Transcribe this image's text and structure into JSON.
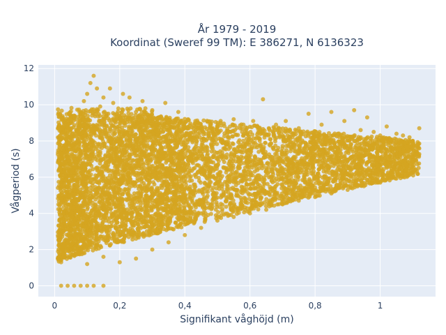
{
  "chart_data": {
    "type": "scatter",
    "title_line1": "År 1979 - 2019",
    "title_line2": "Koordinat (Sweref 99 TM): E 386271, N 6136323",
    "xlabel": "Signifikant våghöjd (m)",
    "ylabel": "Vågperiod (s)",
    "xlim": [
      -0.05,
      1.17
    ],
    "ylim": [
      -0.6,
      12.2
    ],
    "x_ticks": [
      0,
      0.2,
      0.4,
      0.6,
      0.8,
      1
    ],
    "x_tick_labels": [
      "0",
      "0,2",
      "0,4",
      "0,6",
      "0,8",
      "1"
    ],
    "y_ticks": [
      0,
      2,
      4,
      6,
      8,
      10,
      12
    ],
    "y_tick_labels": [
      "0",
      "2",
      "4",
      "6",
      "8",
      "10",
      "12"
    ],
    "grid": true,
    "marker_color": "#D4A520",
    "plot_bg_color": "#E5ECF6",
    "points": [
      [
        0.02,
        0
      ],
      [
        0.04,
        0
      ],
      [
        0.06,
        0
      ],
      [
        0.08,
        0
      ],
      [
        0.1,
        0
      ],
      [
        0.12,
        0
      ],
      [
        0.15,
        0
      ],
      [
        0.01,
        1.5
      ],
      [
        0.02,
        1.3
      ],
      [
        0.03,
        2.2
      ],
      [
        0.03,
        6.4
      ],
      [
        0.04,
        8.8
      ],
      [
        0.04,
        4.5
      ],
      [
        0.05,
        3.1
      ],
      [
        0.06,
        9.4
      ],
      [
        0.06,
        7.0
      ],
      [
        0.07,
        5.5
      ],
      [
        0.07,
        1.9
      ],
      [
        0.08,
        9.6
      ],
      [
        0.08,
        2.6
      ],
      [
        0.09,
        10.2
      ],
      [
        0.09,
        6.8
      ],
      [
        0.1,
        10.6
      ],
      [
        0.1,
        3.7
      ],
      [
        0.1,
        1.2
      ],
      [
        0.11,
        11.2
      ],
      [
        0.11,
        8.1
      ],
      [
        0.12,
        11.6
      ],
      [
        0.12,
        5.0
      ],
      [
        0.13,
        10.9
      ],
      [
        0.13,
        2.3
      ],
      [
        0.14,
        9.9
      ],
      [
        0.14,
        7.3
      ],
      [
        0.15,
        10.4
      ],
      [
        0.15,
        1.6
      ],
      [
        0.16,
        9.5
      ],
      [
        0.16,
        4.2
      ],
      [
        0.17,
        10.9
      ],
      [
        0.17,
        6.1
      ],
      [
        0.18,
        10.1
      ],
      [
        0.19,
        2.6
      ],
      [
        0.2,
        9.0
      ],
      [
        0.2,
        5.6
      ],
      [
        0.21,
        10.6
      ],
      [
        0.22,
        3.1
      ],
      [
        0.22,
        7.8
      ],
      [
        0.23,
        10.4
      ],
      [
        0.24,
        4.8
      ],
      [
        0.25,
        9.6
      ],
      [
        0.25,
        2.6
      ],
      [
        0.26,
        6.9
      ],
      [
        0.27,
        10.2
      ],
      [
        0.28,
        3.3
      ],
      [
        0.29,
        8.5
      ],
      [
        0.3,
        9.7
      ],
      [
        0.3,
        5.3
      ],
      [
        0.31,
        3.4
      ],
      [
        0.32,
        9.3
      ],
      [
        0.33,
        6.6
      ],
      [
        0.34,
        10.1
      ],
      [
        0.35,
        3.7
      ],
      [
        0.36,
        8.9
      ],
      [
        0.37,
        5.1
      ],
      [
        0.38,
        9.6
      ],
      [
        0.39,
        4.1
      ],
      [
        0.4,
        7.6
      ],
      [
        0.41,
        9.2
      ],
      [
        0.42,
        4.3
      ],
      [
        0.43,
        6.5
      ],
      [
        0.44,
        9.0
      ],
      [
        0.45,
        4.6
      ],
      [
        0.46,
        8.1
      ],
      [
        0.47,
        5.6
      ],
      [
        0.48,
        8.9
      ],
      [
        0.49,
        4.8
      ],
      [
        0.5,
        7.1
      ],
      [
        0.51,
        9.1
      ],
      [
        0.52,
        5.0
      ],
      [
        0.53,
        8.4
      ],
      [
        0.54,
        6.4
      ],
      [
        0.55,
        9.2
      ],
      [
        0.56,
        5.3
      ],
      [
        0.57,
        7.8
      ],
      [
        0.58,
        8.9
      ],
      [
        0.59,
        5.6
      ],
      [
        0.6,
        7.0
      ],
      [
        0.61,
        9.1
      ],
      [
        0.62,
        5.8
      ],
      [
        0.63,
        8.0
      ],
      [
        0.64,
        10.3
      ],
      [
        0.65,
        6.1
      ],
      [
        0.66,
        8.6
      ],
      [
        0.67,
        6.7
      ],
      [
        0.68,
        8.9
      ],
      [
        0.69,
        6.3
      ],
      [
        0.7,
        7.6
      ],
      [
        0.71,
        9.1
      ],
      [
        0.72,
        6.5
      ],
      [
        0.73,
        8.2
      ],
      [
        0.74,
        7.1
      ],
      [
        0.75,
        8.7
      ],
      [
        0.76,
        6.8
      ],
      [
        0.77,
        7.9
      ],
      [
        0.78,
        9.5
      ],
      [
        0.79,
        7.0
      ],
      [
        0.8,
        8.3
      ],
      [
        0.81,
        7.5
      ],
      [
        0.82,
        8.9
      ],
      [
        0.83,
        7.2
      ],
      [
        0.84,
        8.0
      ],
      [
        0.85,
        9.6
      ],
      [
        0.86,
        7.4
      ],
      [
        0.87,
        8.4
      ],
      [
        0.88,
        7.9
      ],
      [
        0.89,
        9.1
      ],
      [
        0.9,
        7.6
      ],
      [
        0.91,
        8.2
      ],
      [
        0.92,
        9.7
      ],
      [
        0.93,
        7.9
      ],
      [
        0.94,
        8.6
      ],
      [
        0.95,
        8.1
      ],
      [
        0.96,
        9.3
      ],
      [
        0.97,
        8.0
      ],
      [
        0.98,
        8.5
      ],
      [
        0.99,
        7.8
      ],
      [
        1.0,
        8.3
      ],
      [
        1.01,
        7.9
      ],
      [
        1.02,
        8.8
      ],
      [
        1.03,
        8.1
      ],
      [
        1.04,
        7.6
      ],
      [
        1.05,
        8.4
      ],
      [
        1.06,
        7.9
      ],
      [
        1.07,
        8.3
      ],
      [
        1.08,
        7.7
      ],
      [
        1.09,
        8.2
      ],
      [
        1.1,
        8.0
      ],
      [
        1.12,
        8.7
      ],
      [
        0.2,
        1.3
      ],
      [
        0.25,
        1.5
      ],
      [
        0.3,
        2.0
      ],
      [
        0.35,
        2.4
      ],
      [
        0.4,
        2.8
      ],
      [
        0.45,
        3.2
      ],
      [
        0.5,
        3.6
      ],
      [
        0.55,
        3.8
      ],
      [
        0.6,
        4.0
      ],
      [
        0.65,
        4.2
      ],
      [
        0.7,
        4.5
      ],
      [
        0.75,
        4.7
      ],
      [
        0.8,
        4.9
      ],
      [
        0.85,
        5.1
      ],
      [
        0.9,
        5.3
      ],
      [
        0.95,
        5.5
      ],
      [
        1.0,
        5.7
      ]
    ]
  }
}
